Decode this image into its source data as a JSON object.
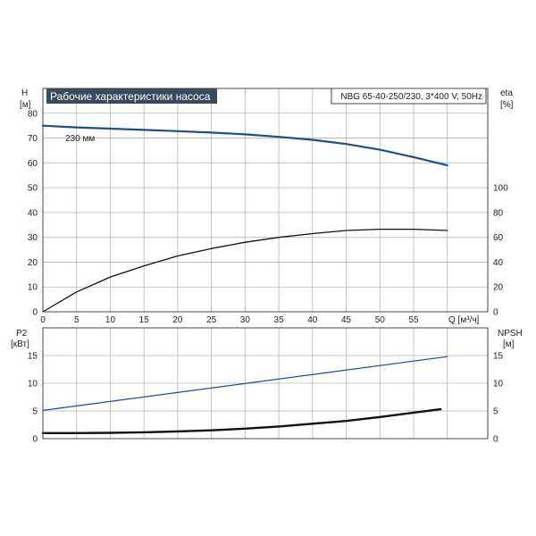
{
  "title": "Рабочие характеристики насоса",
  "model_info": "NBG 65-40-250/230, 3*400 V, 50Hz",
  "chart_data": [
    {
      "type": "line",
      "panel": "top",
      "y_left_label": "H",
      "y_left_unit": "[м]",
      "y_right_label": "eta",
      "y_right_unit": "[%]",
      "x_label": "Q [м³/ч]",
      "xlim": [
        0,
        66
      ],
      "ylim_left": [
        0,
        90
      ],
      "ylim_right": [
        0,
        180
      ],
      "x_ticks": [
        "0",
        "5",
        "10",
        "15",
        "20",
        "25",
        "30",
        "35",
        "40",
        "45",
        "50",
        "55"
      ],
      "y_left_ticks": [
        "0",
        "10",
        "20",
        "30",
        "40",
        "50",
        "60",
        "70",
        "80"
      ],
      "y_right_ticks": [
        "0",
        "20",
        "40",
        "60",
        "80",
        "100"
      ],
      "annotation": "230 мм",
      "grid": true,
      "series": [
        {
          "axis": "left",
          "color": "#1f4e8c",
          "x": [
            0,
            5,
            10,
            15,
            20,
            25,
            30,
            35,
            40,
            45,
            50,
            55,
            60
          ],
          "y": [
            75,
            74.3,
            73.8,
            73.3,
            72.8,
            72.2,
            71.5,
            70.5,
            69.3,
            67.6,
            65.3,
            62.3,
            59
          ]
        },
        {
          "axis": "right",
          "color": "#111111",
          "x": [
            0,
            5,
            10,
            15,
            20,
            25,
            30,
            35,
            40,
            45,
            50,
            55,
            60
          ],
          "y": [
            0,
            16,
            28,
            37,
            45,
            51,
            56,
            60,
            63,
            65.5,
            66.5,
            66.5,
            65.5
          ]
        }
      ]
    },
    {
      "type": "line",
      "panel": "bottom",
      "y_left_label": "P2",
      "y_left_unit": "[кВт]",
      "y_right_label": "NPSH",
      "y_right_unit": "[м]",
      "xlim": [
        0,
        66
      ],
      "ylim_left": [
        0,
        20
      ],
      "ylim_right": [
        0,
        20
      ],
      "y_left_ticks": [
        "0",
        "5",
        "10",
        "15"
      ],
      "y_right_ticks": [
        "0",
        "5",
        "10",
        "15"
      ],
      "grid": true,
      "series": [
        {
          "axis": "left",
          "color": "#1f4e8c",
          "x": [
            0,
            60
          ],
          "y": [
            5.1,
            14.8
          ]
        },
        {
          "axis": "right",
          "color": "#111111",
          "x": [
            0,
            5,
            10,
            15,
            20,
            25,
            30,
            35,
            40,
            45,
            50,
            55,
            59
          ],
          "y": [
            1,
            1,
            1.05,
            1.15,
            1.3,
            1.5,
            1.8,
            2.2,
            2.7,
            3.2,
            3.9,
            4.7,
            5.3
          ]
        }
      ]
    }
  ]
}
